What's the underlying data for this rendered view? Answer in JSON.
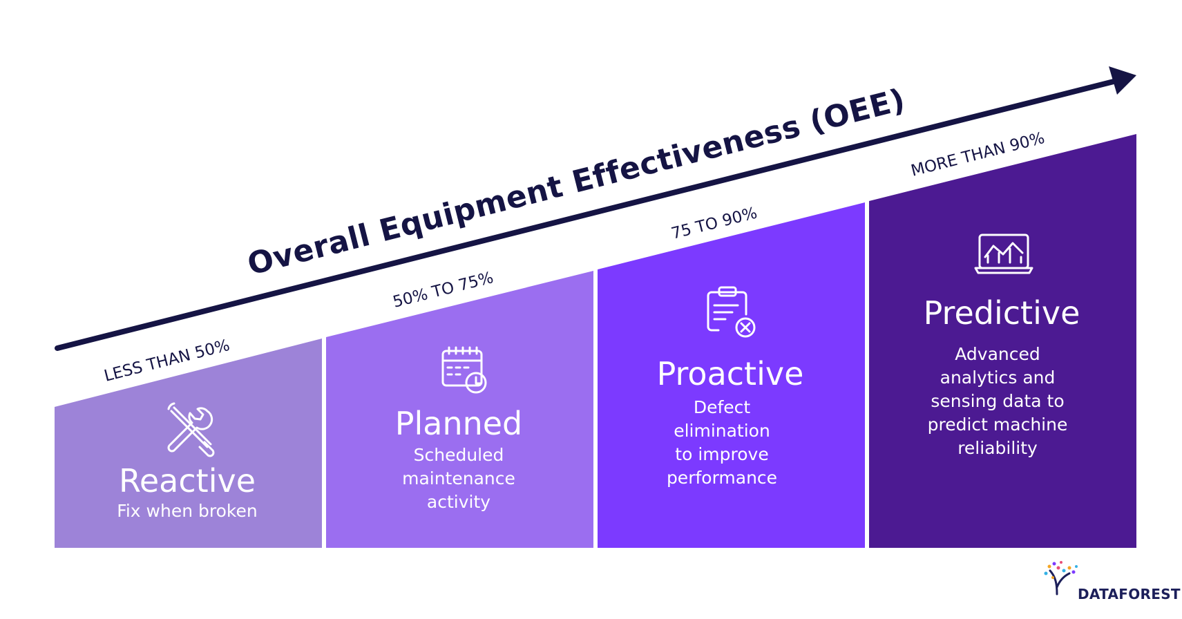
{
  "title": "Overall Equipment Effectiveness (OEE)",
  "stages": [
    {
      "range": "LESS THAN 50%",
      "name": "Reactive",
      "description": "Fix when broken",
      "icon": "wrench-screwdriver-icon",
      "color": "#9d83d8"
    },
    {
      "range": "50% TO 75%",
      "name": "Planned",
      "description": "Scheduled\nmaintenance\nactivity",
      "icon": "calendar-clock-icon",
      "color": "#9b6ef0"
    },
    {
      "range": "75 TO 90%",
      "name": "Proactive",
      "description": "Defect\nelimination\nto improve\nperformance",
      "icon": "clipboard-x-icon",
      "color": "#7c3aff"
    },
    {
      "range": "MORE THAN 90%",
      "name": "Predictive",
      "description": "Advanced\nanalytics and\nsensing data to\npredict machine\nreliability",
      "icon": "laptop-chart-icon",
      "color": "#4c1a92"
    }
  ],
  "arrow_color": "#151444",
  "logo": {
    "text": "DATAFOREST"
  }
}
